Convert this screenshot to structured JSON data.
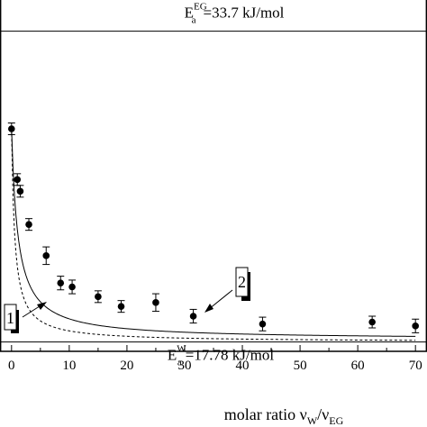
{
  "chart_data": {
    "type": "scatter",
    "xlim": [
      -2,
      72
    ],
    "ylim": [
      17.3,
      35.3
    ],
    "xticks": [
      0,
      10,
      20,
      30,
      40,
      50,
      60,
      70
    ],
    "x_tick_labels": [
      "0",
      "10",
      "20",
      "30",
      "40",
      "50",
      "60",
      "70"
    ],
    "x_label": {
      "main": "molar ratio ν",
      "sub1": "W",
      "sep": "/ν",
      "sub2": "EG"
    },
    "points": [
      {
        "x": 0,
        "y": 28.7,
        "err": 0.3
      },
      {
        "x": 1,
        "y": 26.1,
        "err": 0.3
      },
      {
        "x": 1.5,
        "y": 25.5,
        "err": 0.3
      },
      {
        "x": 3,
        "y": 23.8,
        "err": 0.3
      },
      {
        "x": 6,
        "y": 22.2,
        "err": 0.45
      },
      {
        "x": 8.5,
        "y": 20.8,
        "err": 0.35
      },
      {
        "x": 10.5,
        "y": 20.6,
        "err": 0.35
      },
      {
        "x": 15,
        "y": 20.1,
        "err": 0.3
      },
      {
        "x": 19,
        "y": 19.6,
        "err": 0.3
      },
      {
        "x": 25,
        "y": 19.8,
        "err": 0.45
      },
      {
        "x": 31.5,
        "y": 19.1,
        "err": 0.35
      },
      {
        "x": 43.5,
        "y": 18.7,
        "err": 0.35
      },
      {
        "x": 62.5,
        "y": 18.8,
        "err": 0.3
      },
      {
        "x": 70,
        "y": 18.6,
        "err": 0.35
      }
    ],
    "series": [
      {
        "label": "2",
        "style": "solid"
      },
      {
        "label": "1",
        "style": "dashed"
      }
    ],
    "reference_lines": [
      {
        "y": 33.7,
        "text_main": "E",
        "text_sub": "a",
        "text_sup": "EG",
        "text_value": "=33.7 kJ/mol"
      },
      {
        "y": 17.78,
        "text_main": "E",
        "text_sub": "a",
        "text_sup": "W",
        "text_value": "=17.78 kJ/mol"
      }
    ]
  }
}
